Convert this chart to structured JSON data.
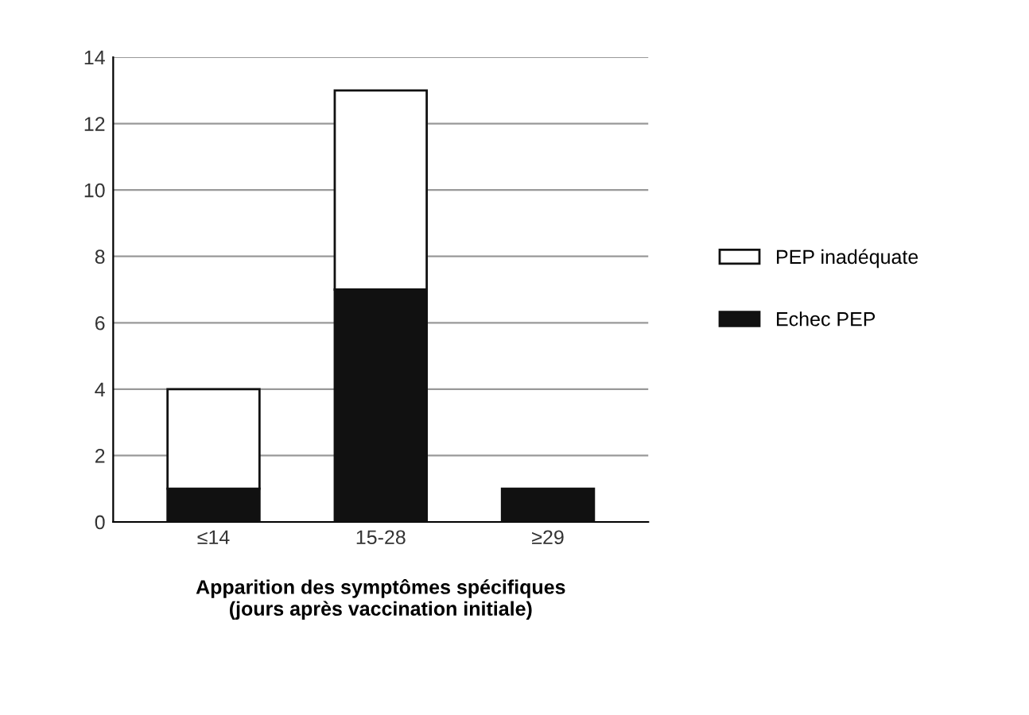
{
  "chart_data": {
    "type": "bar",
    "stacked": true,
    "xlabel": "Apparition des symptômes spécifiques\n(jours après vaccination initiale)",
    "categories": [
      "≤14",
      "15-28",
      "≥29"
    ],
    "series": [
      {
        "name": "Echec PEP",
        "color": "#111111",
        "values": [
          1,
          7,
          1
        ]
      },
      {
        "name": "PEP inadéquate",
        "color": "#ffffff",
        "values": [
          3,
          6,
          0
        ]
      }
    ],
    "ylim": [
      0,
      14
    ],
    "yticks": [
      0,
      2,
      4,
      6,
      8,
      10,
      12,
      14
    ],
    "grid": "y",
    "legend": "right"
  }
}
